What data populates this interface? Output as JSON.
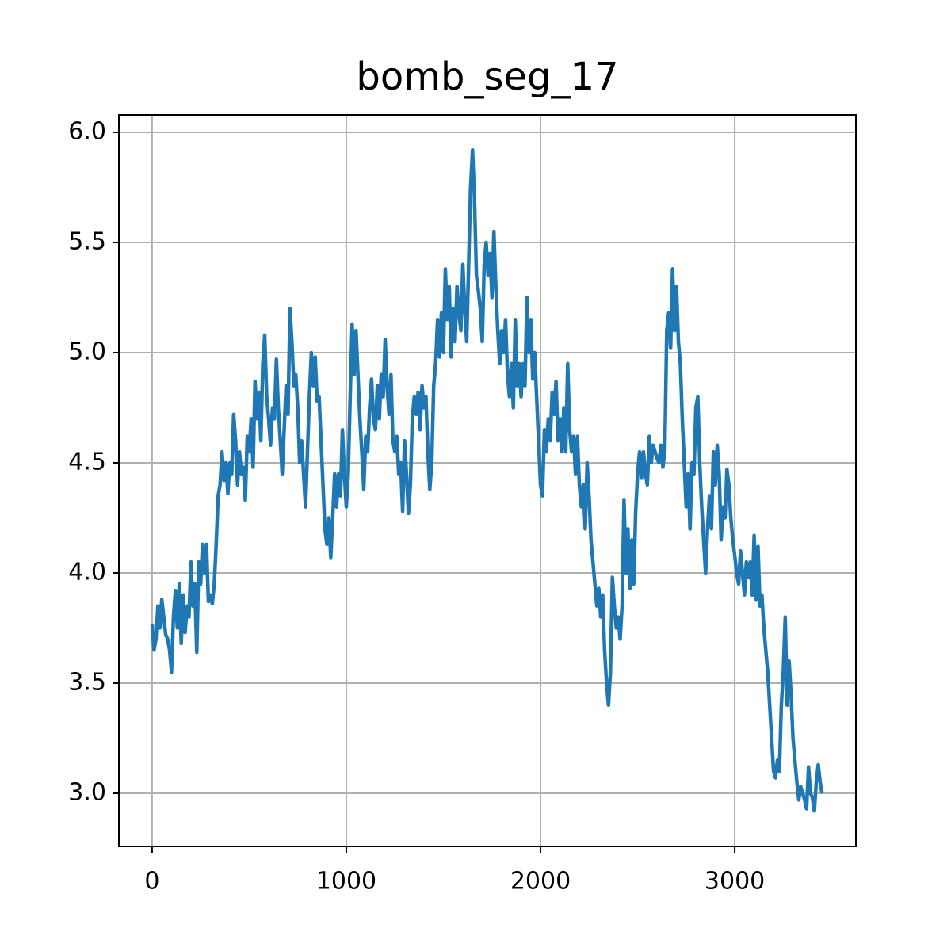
{
  "chart_data": {
    "type": "line",
    "title": "bomb_seg_17",
    "x": [
      0,
      10,
      20,
      30,
      40,
      50,
      60,
      70,
      80,
      90,
      100,
      110,
      120,
      130,
      140,
      150,
      160,
      170,
      180,
      190,
      200,
      210,
      220,
      230,
      240,
      250,
      260,
      270,
      280,
      290,
      300,
      310,
      320,
      330,
      340,
      350,
      360,
      370,
      380,
      390,
      400,
      410,
      420,
      430,
      440,
      450,
      460,
      470,
      480,
      490,
      500,
      510,
      520,
      530,
      540,
      550,
      560,
      570,
      580,
      590,
      600,
      610,
      620,
      630,
      640,
      650,
      660,
      670,
      680,
      690,
      700,
      710,
      720,
      730,
      740,
      750,
      760,
      770,
      780,
      790,
      800,
      810,
      820,
      830,
      840,
      850,
      860,
      870,
      880,
      890,
      900,
      910,
      920,
      930,
      940,
      950,
      960,
      970,
      980,
      990,
      1000,
      1010,
      1020,
      1030,
      1040,
      1050,
      1060,
      1070,
      1080,
      1090,
      1100,
      1110,
      1120,
      1130,
      1140,
      1150,
      1160,
      1170,
      1180,
      1190,
      1200,
      1210,
      1220,
      1230,
      1240,
      1250,
      1260,
      1270,
      1280,
      1290,
      1300,
      1310,
      1320,
      1330,
      1340,
      1350,
      1360,
      1370,
      1380,
      1390,
      1400,
      1410,
      1420,
      1430,
      1440,
      1450,
      1460,
      1470,
      1480,
      1490,
      1500,
      1510,
      1520,
      1530,
      1540,
      1550,
      1560,
      1570,
      1580,
      1590,
      1600,
      1610,
      1620,
      1630,
      1640,
      1650,
      1660,
      1670,
      1680,
      1690,
      1700,
      1710,
      1720,
      1730,
      1740,
      1750,
      1760,
      1770,
      1780,
      1790,
      1800,
      1810,
      1820,
      1830,
      1840,
      1850,
      1860,
      1870,
      1880,
      1890,
      1900,
      1910,
      1920,
      1930,
      1940,
      1950,
      1960,
      1970,
      1980,
      1990,
      2000,
      2010,
      2020,
      2030,
      2040,
      2050,
      2060,
      2070,
      2080,
      2090,
      2100,
      2110,
      2120,
      2130,
      2140,
      2150,
      2160,
      2170,
      2180,
      2190,
      2200,
      2210,
      2220,
      2230,
      2240,
      2250,
      2260,
      2270,
      2280,
      2290,
      2300,
      2310,
      2320,
      2330,
      2340,
      2350,
      2360,
      2370,
      2380,
      2390,
      2400,
      2410,
      2420,
      2430,
      2440,
      2450,
      2460,
      2470,
      2480,
      2490,
      2500,
      2510,
      2520,
      2530,
      2540,
      2550,
      2560,
      2570,
      2580,
      2590,
      2600,
      2610,
      2620,
      2630,
      2640,
      2650,
      2660,
      2670,
      2680,
      2690,
      2700,
      2710,
      2720,
      2730,
      2740,
      2750,
      2760,
      2770,
      2780,
      2790,
      2800,
      2810,
      2820,
      2830,
      2840,
      2850,
      2860,
      2870,
      2880,
      2890,
      2900,
      2910,
      2920,
      2930,
      2940,
      2950,
      2960,
      2970,
      2980,
      2990,
      3000,
      3010,
      3020,
      3030,
      3040,
      3050,
      3060,
      3070,
      3080,
      3090,
      3100,
      3110,
      3120,
      3130,
      3140,
      3150,
      3160,
      3170,
      3180,
      3190,
      3200,
      3210,
      3220,
      3230,
      3240,
      3250,
      3260,
      3270,
      3280,
      3290,
      3300,
      3310,
      3320,
      3330,
      3340,
      3350,
      3360,
      3370,
      3380,
      3390,
      3400,
      3410,
      3420,
      3430,
      3440,
      3450
    ],
    "series": [
      {
        "color": "#1f77b4",
        "values": [
          3.77,
          3.65,
          3.7,
          3.85,
          3.75,
          3.88,
          3.8,
          3.72,
          3.7,
          3.65,
          3.55,
          3.8,
          3.92,
          3.75,
          3.95,
          3.68,
          3.9,
          3.73,
          3.85,
          3.8,
          4.05,
          3.85,
          3.95,
          3.64,
          4.05,
          3.95,
          4.13,
          4.0,
          4.13,
          3.87,
          3.9,
          3.86,
          3.95,
          4.13,
          4.35,
          4.4,
          4.55,
          4.42,
          4.5,
          4.36,
          4.5,
          4.45,
          4.72,
          4.6,
          4.4,
          4.55,
          4.45,
          4.48,
          4.33,
          4.62,
          4.55,
          4.7,
          4.48,
          4.87,
          4.7,
          4.82,
          4.6,
          4.95,
          5.08,
          4.8,
          4.7,
          4.58,
          4.75,
          4.7,
          4.97,
          4.75,
          4.6,
          4.45,
          4.65,
          4.85,
          4.72,
          5.2,
          5.05,
          4.85,
          4.9,
          4.75,
          4.5,
          4.6,
          4.45,
          4.3,
          4.55,
          4.8,
          5.0,
          4.85,
          4.98,
          4.78,
          4.8,
          4.6,
          4.4,
          4.2,
          4.13,
          4.25,
          4.07,
          4.25,
          4.45,
          4.3,
          4.45,
          4.35,
          4.65,
          4.45,
          4.3,
          4.45,
          4.8,
          5.13,
          4.9,
          5.1,
          4.9,
          4.7,
          4.55,
          4.38,
          4.62,
          4.55,
          4.75,
          4.88,
          4.7,
          4.65,
          4.85,
          4.7,
          4.9,
          4.8,
          5.06,
          4.85,
          4.72,
          4.9,
          4.6,
          4.55,
          4.62,
          4.45,
          4.5,
          4.28,
          4.6,
          4.45,
          4.27,
          4.4,
          4.7,
          4.8,
          4.72,
          4.82,
          4.65,
          4.85,
          4.75,
          4.8,
          4.55,
          4.38,
          4.5,
          4.85,
          4.95,
          5.15,
          4.98,
          5.18,
          5.0,
          5.38,
          5.15,
          5.3,
          4.98,
          5.2,
          5.05,
          5.3,
          5.18,
          5.1,
          5.4,
          5.2,
          5.05,
          5.4,
          5.75,
          5.92,
          5.7,
          5.35,
          5.28,
          5.2,
          5.05,
          5.4,
          5.5,
          5.35,
          5.45,
          5.25,
          5.55,
          5.3,
          5.1,
          4.95,
          5.1,
          5.0,
          5.15,
          4.9,
          4.8,
          4.95,
          4.75,
          5.15,
          4.85,
          4.95,
          4.8,
          4.95,
          4.85,
          5.25,
          5.0,
          5.15,
          4.88,
          5.0,
          4.8,
          4.6,
          4.4,
          4.35,
          4.65,
          4.55,
          4.7,
          4.6,
          4.82,
          4.72,
          4.87,
          4.6,
          4.7,
          4.55,
          4.75,
          4.55,
          4.95,
          4.65,
          4.55,
          4.62,
          4.45,
          4.62,
          4.4,
          4.3,
          4.4,
          4.2,
          4.5,
          4.35,
          4.15,
          4.05,
          3.95,
          3.85,
          3.93,
          3.8,
          3.9,
          3.65,
          3.5,
          3.4,
          3.55,
          3.98,
          3.85,
          3.75,
          3.8,
          3.7,
          3.85,
          4.33,
          4.0,
          4.2,
          3.93,
          4.15,
          3.95,
          4.28,
          4.45,
          4.55,
          4.43,
          4.55,
          4.45,
          4.4,
          4.62,
          4.5,
          4.58,
          4.55,
          4.52,
          4.5,
          4.58,
          4.48,
          4.55,
          5.1,
          5.18,
          5.02,
          5.38,
          5.1,
          5.3,
          5.05,
          4.95,
          4.7,
          4.5,
          4.3,
          4.45,
          4.2,
          4.5,
          4.45,
          4.75,
          4.8,
          4.5,
          4.3,
          4.15,
          4.0,
          4.2,
          4.35,
          4.2,
          4.55,
          4.4,
          4.58,
          4.45,
          4.15,
          4.3,
          4.25,
          4.47,
          4.4,
          4.25,
          4.15,
          4.08,
          4.0,
          3.95,
          4.1,
          4.0,
          3.9,
          4.05,
          3.98,
          4.05,
          3.9,
          4.17,
          3.88,
          4.12,
          3.85,
          3.9,
          3.75,
          3.65,
          3.55,
          3.4,
          3.25,
          3.1,
          3.07,
          3.15,
          3.1,
          3.4,
          3.55,
          3.8,
          3.4,
          3.6,
          3.45,
          3.25,
          3.15,
          3.05,
          2.97,
          3.03,
          3.0,
          2.97,
          2.93,
          3.12,
          3.0,
          2.98,
          2.92,
          3.05,
          3.13,
          3.05,
          3.0
        ]
      }
    ],
    "xlim": [
      -171,
      3624
    ],
    "ylim": [
      2.759,
      6.079
    ],
    "xticks": [
      0,
      1000,
      2000,
      3000
    ],
    "yticks": [
      {
        "value": 3,
        "label": "3.0"
      },
      3.5,
      {
        "value": 4,
        "label": "4.0"
      },
      4.5,
      {
        "value": 5,
        "label": "5.0"
      },
      5.5,
      {
        "value": 6,
        "label": "6.0"
      }
    ],
    "grid": true
  }
}
